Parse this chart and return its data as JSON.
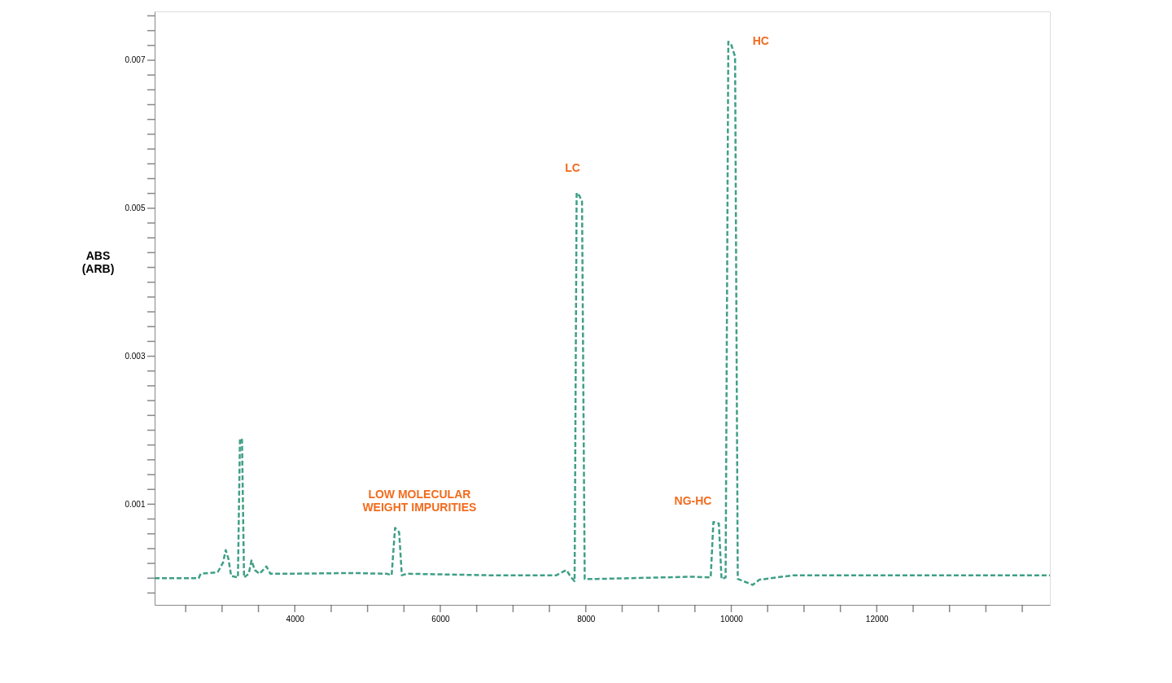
{
  "chart_data": {
    "type": "line",
    "ylabel": "ABS (ARB)",
    "x": [
      2073,
      2678,
      2706,
      2939,
      3013,
      3050,
      3088,
      3125,
      3218,
      3246,
      3274,
      3302,
      3367,
      3404,
      3451,
      3516,
      3609,
      3665,
      3870,
      4801,
      5266,
      5331,
      5378,
      5434,
      5471,
      5546,
      6663,
      7594,
      7734,
      7799,
      7846,
      7874,
      7911,
      7948,
      7985,
      8153,
      9456,
      9717,
      9754,
      9829,
      9866,
      9922,
      9959,
      9996,
      10052,
      10089,
      10294,
      10387,
      10853,
      14380
    ],
    "series": [
      {
        "color": "#3f9f86",
        "values": [
          0,
          0,
          6e-05,
          8e-05,
          0.00021,
          0.00038,
          0.00026,
          3e-05,
          1e-05,
          0.00189,
          0.00187,
          1e-05,
          6e-05,
          0.00024,
          0.00011,
          6e-05,
          0.00016,
          6e-05,
          6e-05,
          7e-05,
          6e-05,
          4e-05,
          0.00068,
          0.00062,
          4e-05,
          6e-05,
          4e-05,
          4e-05,
          0.00011,
          1e-05,
          -4e-05,
          0.00521,
          0.00517,
          0.00509,
          -1e-05,
          -1e-05,
          2e-05,
          1e-05,
          0.00076,
          0.00074,
          -1e-05,
          1e-05,
          0.00725,
          0.00722,
          0.00705,
          -1e-05,
          -9e-05,
          -2e-05,
          4e-05,
          4e-05
        ]
      }
    ],
    "line_style": "dashed",
    "xlim": [
      2073,
      14380
    ],
    "xticks": [
      {
        "value": 2500,
        "label": null
      },
      {
        "value": 3000,
        "label": null
      },
      {
        "value": 3500,
        "label": null
      },
      4000,
      {
        "value": 4500,
        "label": null
      },
      {
        "value": 5000,
        "label": null
      },
      {
        "value": 5500,
        "label": null
      },
      6000,
      {
        "value": 6500,
        "label": null
      },
      {
        "value": 7000,
        "label": null
      },
      {
        "value": 7500,
        "label": null
      },
      8000,
      {
        "value": 8500,
        "label": null
      },
      {
        "value": 9000,
        "label": null
      },
      {
        "value": 9500,
        "label": null
      },
      10000,
      {
        "value": 10500,
        "label": null
      },
      {
        "value": 11000,
        "label": null
      },
      {
        "value": 11500,
        "label": null
      },
      12000,
      {
        "value": 12500,
        "label": null
      },
      {
        "value": 13000,
        "label": null
      },
      {
        "value": 13500,
        "label": null
      },
      {
        "value": 14000,
        "label": null
      }
    ],
    "ylim": [
      -0.00036,
      0.00766
    ],
    "yticks": [
      {
        "value": -0.0002,
        "label": null
      },
      {
        "value": 0,
        "label": null
      },
      {
        "value": 0.0002,
        "label": null
      },
      {
        "value": 0.0004,
        "label": null
      },
      {
        "value": 0.0006,
        "label": null
      },
      {
        "value": 0.0008,
        "label": null
      },
      0.001,
      {
        "value": 0.0012,
        "label": null
      },
      {
        "value": 0.0014,
        "label": null
      },
      {
        "value": 0.0016,
        "label": null
      },
      {
        "value": 0.0018,
        "label": null
      },
      {
        "value": 0.002,
        "label": null
      },
      {
        "value": 0.0022,
        "label": null
      },
      {
        "value": 0.0024,
        "label": null
      },
      {
        "value": 0.0026,
        "label": null
      },
      {
        "value": 0.0028,
        "label": null
      },
      0.003,
      {
        "value": 0.0032,
        "label": null
      },
      {
        "value": 0.0034,
        "label": null
      },
      {
        "value": 0.0036,
        "label": null
      },
      {
        "value": 0.0038,
        "label": null
      },
      {
        "value": 0.004,
        "label": null
      },
      {
        "value": 0.0042,
        "label": null
      },
      {
        "value": 0.0044,
        "label": null
      },
      {
        "value": 0.0046,
        "label": null
      },
      {
        "value": 0.0048,
        "label": null
      },
      0.005,
      {
        "value": 0.0052,
        "label": null
      },
      {
        "value": 0.0054,
        "label": null
      },
      {
        "value": 0.0056,
        "label": null
      },
      {
        "value": 0.0058,
        "label": null
      },
      {
        "value": 0.006,
        "label": null
      },
      {
        "value": 0.0062,
        "label": null
      },
      {
        "value": 0.0064,
        "label": null
      },
      {
        "value": 0.0066,
        "label": null
      },
      {
        "value": 0.0068,
        "label": null
      },
      0.007,
      {
        "value": 0.0072,
        "label": null
      },
      {
        "value": 0.0074,
        "label": null
      },
      {
        "value": 0.0076,
        "label": null
      }
    ],
    "grid": false,
    "marker": "none",
    "annotations": [
      {
        "text": "LOW MOLECULAR\nWEIGHT IMPURITIES",
        "x": 5378,
        "y": 0.00068
      },
      {
        "text": "LC",
        "x": 7874,
        "y": 0.00521
      },
      {
        "text": "NG-HC",
        "x": 9754,
        "y": 0.00076
      },
      {
        "text": "HC",
        "x": 9959,
        "y": 0.00725
      }
    ]
  }
}
